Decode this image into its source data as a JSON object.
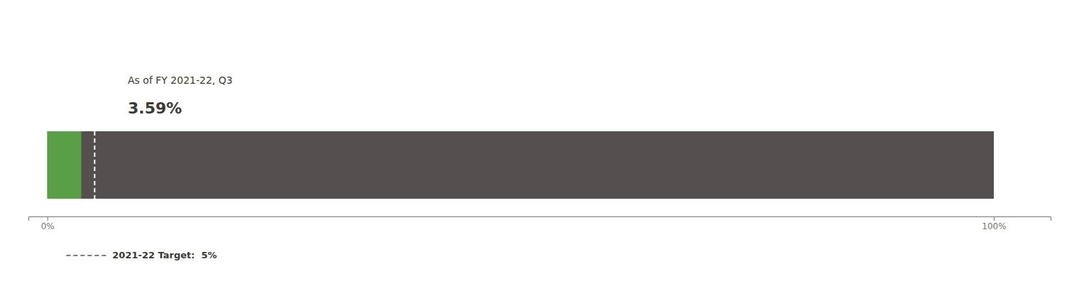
{
  "chart_data": {
    "type": "bar",
    "orientation": "horizontal",
    "subtitle": "As of FY 2021-22, Q3",
    "categories": [
      null
    ],
    "series": [
      {
        "color": "#554f4f",
        "values": [
          100
        ]
      },
      {
        "color": "#5a9e47",
        "values": [
          3.59
        ],
        "value_labels": [
          "3.59%"
        ]
      }
    ],
    "data_labels": true,
    "target": {
      "value": 5,
      "label": "2021-22 Target:  5%",
      "color": "#554f4f"
    },
    "xlim": [
      -2,
      106
    ],
    "xticks": [
      {
        "value": 0,
        "label": "0%"
      },
      {
        "value": 100,
        "label": "100%"
      }
    ],
    "tick_labels": "x",
    "grid": false
  }
}
